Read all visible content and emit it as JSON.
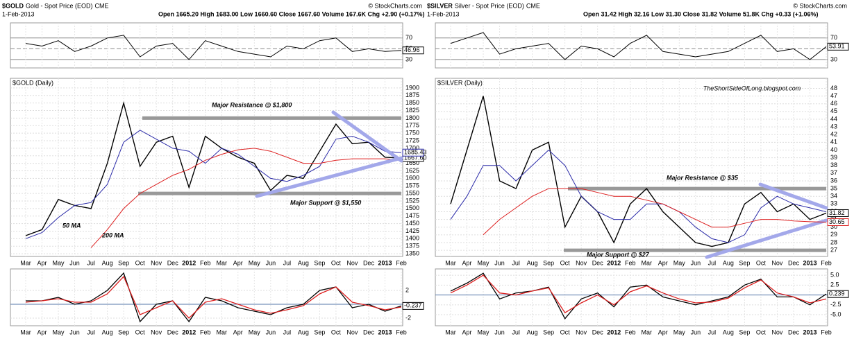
{
  "chart_data": [
    {
      "type": "line",
      "symbol": "$GOLD",
      "title": "Gold - Spot Price (EOD)",
      "exchange": "CME",
      "date": "1-Feb-2013",
      "quote": "Open 1665.20 High 1683.00 Low 1660.60 Close 1667.60 Volume 167.6K Chg +2.90 (+0.17%)",
      "copyright": "© StockCharts.com",
      "panel_label": "$GOLD (Daily)",
      "categories": [
        "Mar",
        "Apr",
        "May",
        "Jun",
        "Jul",
        "Aug",
        "Sep",
        "Oct",
        "Nov",
        "Dec",
        "2012",
        "Feb",
        "Mar",
        "Apr",
        "May",
        "Jun",
        "Jul",
        "Aug",
        "Sep",
        "Oct",
        "Nov",
        "Dec",
        "2013",
        "Feb"
      ],
      "series": [
        {
          "color": "#000000",
          "values": [
            1410,
            1430,
            1530,
            1510,
            1500,
            1650,
            1850,
            1640,
            1720,
            1740,
            1570,
            1740,
            1700,
            1670,
            1650,
            1560,
            1610,
            1600,
            1690,
            1780,
            1715,
            1720,
            1670,
            1667.6
          ],
          "last_label": "1667.60"
        },
        {
          "name": "50 MA",
          "color": "#2a2aa8",
          "values": [
            1400,
            1420,
            1470,
            1510,
            1520,
            1580,
            1720,
            1760,
            1730,
            1700,
            1690,
            1650,
            1700,
            1680,
            1640,
            1600,
            1590,
            1610,
            1640,
            1730,
            1740,
            1720,
            1690,
            1685.43
          ],
          "last_label": "1685.43"
        },
        {
          "name": "200 MA",
          "color": "#dd2020",
          "values": [
            null,
            null,
            null,
            null,
            1370,
            1430,
            1500,
            1550,
            1580,
            1610,
            1630,
            1660,
            1680,
            1695,
            1700,
            1690,
            1670,
            1650,
            1650,
            1660,
            1665,
            1665,
            1665,
            1660
          ]
        }
      ],
      "ylim": [
        1341,
        1932
      ],
      "yticks": [
        1350,
        1375,
        1400,
        1425,
        1450,
        1475,
        1500,
        1525,
        1550,
        1575,
        1600,
        1625,
        1650,
        1675,
        1700,
        1725,
        1750,
        1775,
        1800,
        1825,
        1850,
        1875,
        1900
      ],
      "grid": true,
      "levels": [
        {
          "value": 1800,
          "label": "Major Resistance @ $1,800"
        },
        {
          "value": 1550,
          "label": "Major Support @ $1,550"
        }
      ],
      "rsi": {
        "values": [
          60,
          55,
          65,
          45,
          55,
          70,
          75,
          35,
          55,
          60,
          30,
          65,
          55,
          45,
          40,
          35,
          55,
          50,
          65,
          70,
          45,
          50,
          45,
          46.96
        ],
        "last_label": "46.96",
        "ylim": [
          14.5,
          98
        ],
        "yticks": [
          70,
          50,
          30
        ]
      },
      "macd": {
        "ylim": [
          -3.1,
          5.1
        ],
        "yticks": [
          2,
          -2
        ],
        "series": [
          {
            "color": "#000000",
            "values": [
              0.5,
              0.5,
              1,
              0,
              0.5,
              2,
              4.5,
              -2.5,
              0,
              0.5,
              -2.5,
              1,
              0.5,
              -0.5,
              -1,
              -1.5,
              -0.5,
              0,
              2,
              2.5,
              -0.5,
              0,
              -1,
              -0.237
            ],
            "last_label": "-0.237"
          },
          {
            "color": "#dd2020",
            "values": [
              0.3,
              0.5,
              0.8,
              0.3,
              0.3,
              1.5,
              4,
              -1.5,
              -0.5,
              0.5,
              -2,
              0.3,
              0.8,
              0,
              -0.8,
              -1.3,
              -0.8,
              -0.2,
              1.5,
              2.5,
              0.3,
              -0.2,
              -0.8,
              -0.4
            ]
          }
        ]
      }
    },
    {
      "type": "line",
      "symbol": "$SILVER",
      "title": "Silver - Spot Price (EOD)",
      "exchange": "CME",
      "date": "1-Feb-2013",
      "quote": "Open 31.42 High 32.16 Low 31.30 Close 31.82 Volume 51.8K Chg +0.33 (+1.06%)",
      "copyright": "© StockCharts.com",
      "panel_label": "$SILVER (Daily)",
      "watermark": "TheShortSideOfLong.blogspot.com",
      "categories": [
        "Mar",
        "Apr",
        "May",
        "Jun",
        "Jul",
        "Aug",
        "Sep",
        "Oct",
        "Nov",
        "Dec",
        "2012",
        "Feb",
        "Mar",
        "Apr",
        "May",
        "Jun",
        "Jul",
        "Aug",
        "Sep",
        "Oct",
        "Nov",
        "Dec",
        "2013",
        "Feb"
      ],
      "series": [
        {
          "color": "#000000",
          "values": [
            33,
            40,
            47,
            36,
            35,
            40,
            41,
            30,
            34,
            32,
            28,
            33,
            35,
            32,
            30,
            28,
            27.5,
            28,
            33,
            34.5,
            32,
            33,
            31,
            31.82
          ],
          "last_label": "31.82"
        },
        {
          "name": "50 MA",
          "color": "#2a2aa8",
          "values": [
            31,
            34,
            38,
            38,
            36,
            38,
            40,
            38,
            34,
            32,
            31,
            31,
            33,
            33,
            32,
            30,
            28.5,
            28,
            29,
            32.5,
            34,
            33,
            32.5,
            32
          ]
        },
        {
          "name": "200 MA",
          "color": "#dd2020",
          "values": [
            null,
            null,
            29,
            31,
            32.5,
            34,
            35,
            35,
            35,
            34.5,
            34,
            34,
            33.5,
            33,
            32,
            31,
            30,
            30,
            30.5,
            31,
            31,
            30.8,
            30.7,
            30.65
          ],
          "last_label": "30.65"
        }
      ],
      "ylim": [
        26.2,
        49.3
      ],
      "yticks": [
        27,
        28,
        29,
        30,
        31,
        32,
        33,
        34,
        35,
        36,
        37,
        38,
        39,
        40,
        41,
        42,
        43,
        44,
        45,
        46,
        47,
        48
      ],
      "grid": true,
      "levels": [
        {
          "value": 35,
          "label": "Major Resistance @ $35"
        },
        {
          "value": 27,
          "label": "Major Support @ $27"
        }
      ],
      "rsi": {
        "values": [
          60,
          70,
          80,
          40,
          50,
          55,
          60,
          30,
          55,
          50,
          35,
          60,
          75,
          45,
          40,
          35,
          40,
          45,
          60,
          75,
          45,
          50,
          30,
          53.91
        ],
        "last_label": "53.91",
        "ylim": [
          14.5,
          98
        ],
        "yticks": [
          70,
          50,
          30
        ]
      },
      "macd": {
        "ylim": [
          -7.8,
          6.6
        ],
        "yticks": [
          {
            "value": 5,
            "label": "5.0"
          },
          {
            "value": 2.5,
            "label": "2.5"
          },
          {
            "value": -2.5,
            "label": "-2.5"
          },
          {
            "value": -5,
            "label": "-5.0"
          }
        ],
        "series": [
          {
            "color": "#000000",
            "values": [
              1,
              3,
              5.5,
              -1,
              0.5,
              1,
              2,
              -6,
              -1,
              0.5,
              -3,
              2,
              2.5,
              -0.5,
              -1.5,
              -2.5,
              -1.5,
              -0.5,
              2.5,
              4,
              -0.5,
              -0.5,
              -2.5,
              0.239
            ],
            "last_label": "0.239"
          },
          {
            "color": "#dd2020",
            "values": [
              0.5,
              2.5,
              5,
              0.5,
              0,
              1,
              1.8,
              -4.5,
              -2,
              0,
              -2.5,
              0.8,
              2.3,
              0.5,
              -1,
              -2,
              -1.8,
              -0.8,
              1.8,
              3.8,
              0.5,
              -0.5,
              -2,
              -1
            ]
          }
        ]
      }
    }
  ]
}
